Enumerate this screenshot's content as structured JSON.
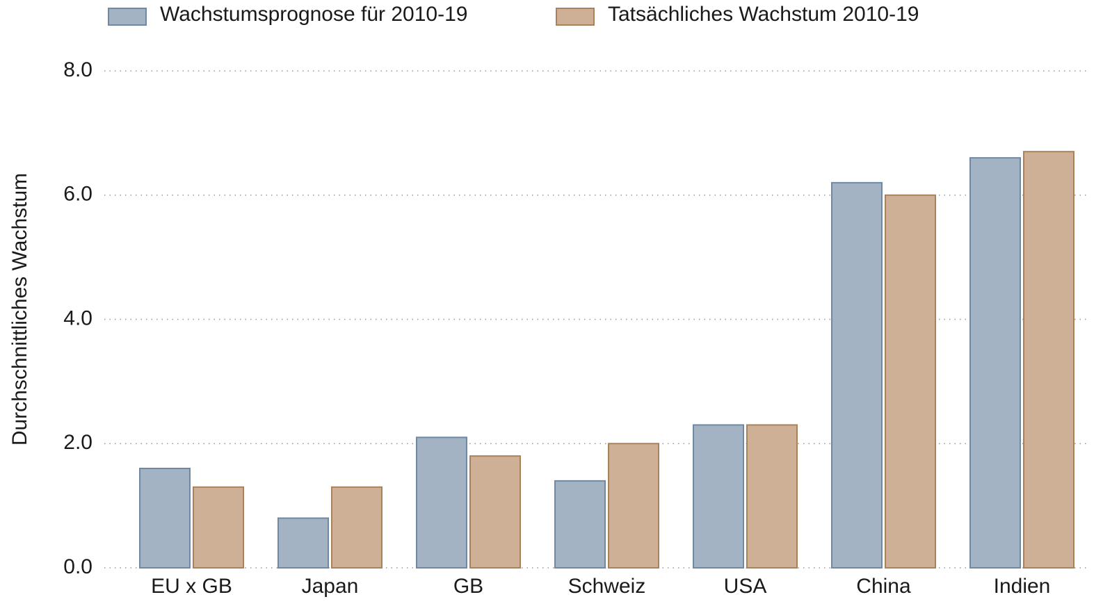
{
  "chart_data": {
    "type": "bar",
    "y_label": "Durchschnittliches Wachstum",
    "categories": [
      "EU x GB",
      "Japan",
      "GB",
      "Schweiz",
      "USA",
      "China",
      "Indien"
    ],
    "series": [
      {
        "name": "Wachstumsprognose für 2010-19",
        "color": "#a3b3c4",
        "edge_color": "#6f88a3",
        "values": [
          1.6,
          0.8,
          2.1,
          1.4,
          2.3,
          6.2,
          6.6
        ]
      },
      {
        "name": "Tatsächliches Wachstum 2010-19",
        "color": "#cdb095",
        "edge_color": "#a9825a",
        "values": [
          1.3,
          1.3,
          1.8,
          2.0,
          2.3,
          6.0,
          6.7
        ]
      }
    ],
    "ylim": [
      0,
      8
    ],
    "yticks": [
      {
        "value": 0,
        "label": "0.0"
      },
      {
        "value": 2,
        "label": "2.0"
      },
      {
        "value": 4,
        "label": "4.0"
      },
      {
        "value": 6,
        "label": "6.0"
      },
      {
        "value": 8,
        "label": "8.0"
      }
    ],
    "grid": true,
    "legend": "top"
  }
}
